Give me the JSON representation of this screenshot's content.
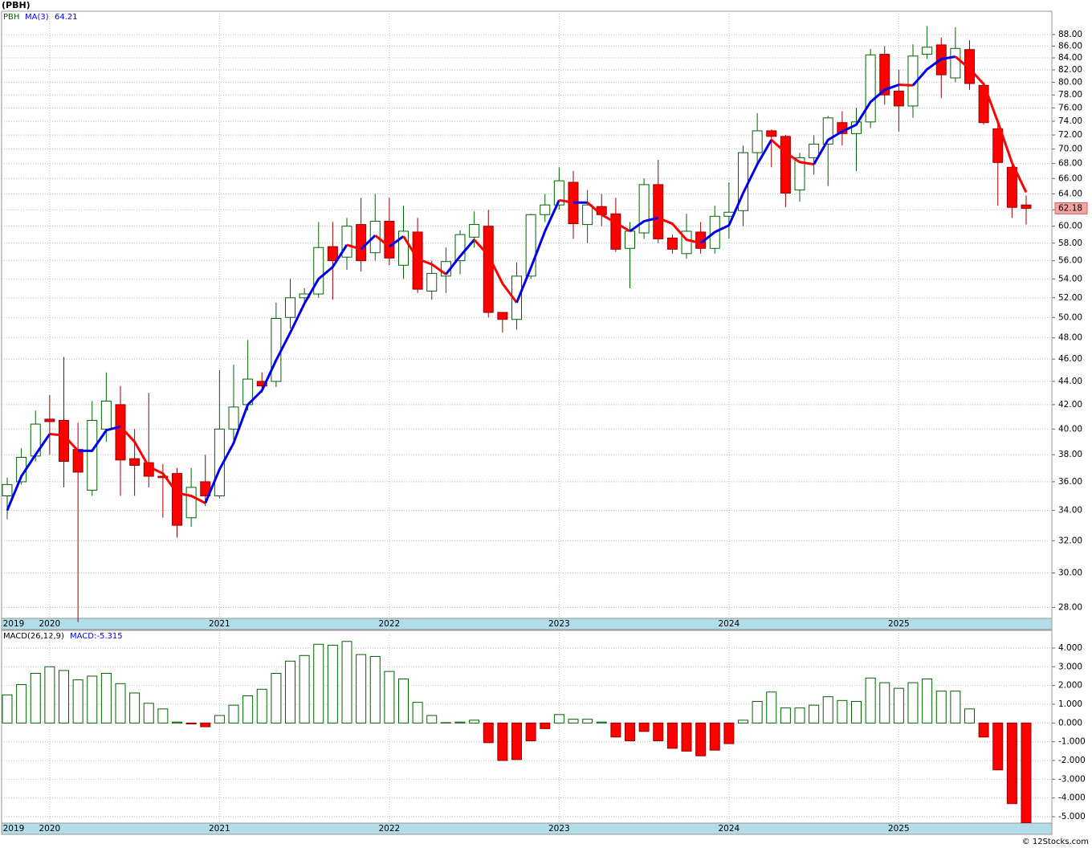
{
  "chart_data": [
    {
      "type": "candlestick",
      "title": "(PBH)",
      "name": "PBH",
      "categories": [
        "2019",
        null,
        null,
        "2020",
        null,
        null,
        null,
        null,
        null,
        null,
        null,
        null,
        null,
        null,
        null,
        "2021",
        null,
        null,
        null,
        null,
        null,
        null,
        null,
        null,
        null,
        null,
        null,
        "2022",
        null,
        null,
        null,
        null,
        null,
        null,
        null,
        null,
        null,
        null,
        null,
        "2023",
        null,
        null,
        null,
        null,
        null,
        null,
        null,
        null,
        null,
        null,
        null,
        "2024",
        null,
        null,
        null,
        null,
        null,
        null,
        null,
        null,
        null,
        null,
        null,
        "2025",
        null,
        null,
        null,
        null,
        null,
        null,
        null,
        null,
        null
      ],
      "open": [
        35.0,
        36.0,
        37.9,
        40.8,
        40.7,
        38.4,
        35.4,
        40.0,
        42.0,
        37.7,
        37.4,
        36.4,
        36.6,
        33.5,
        36.0,
        35.0,
        40.0,
        42.0,
        44.0,
        44.0,
        50.0,
        52.0,
        52.4,
        57.6,
        56.4,
        60.2,
        56.9,
        60.6,
        55.5,
        59.3,
        52.7,
        54.3,
        56.0,
        58.7,
        60.0,
        50.5,
        49.8,
        54.3,
        61.4,
        62.6,
        65.5,
        60.2,
        62.4,
        61.5,
        57.4,
        59.2,
        65.2,
        58.6,
        56.8,
        59.3,
        57.4,
        61.2,
        61.9,
        69.5,
        72.6,
        71.8,
        64.5,
        68.8,
        70.7,
        73.8,
        72.2,
        73.9,
        84.6,
        78.6,
        76.3,
        84.6,
        86.2,
        80.7,
        85.4,
        79.5,
        72.9,
        67.5,
        62.6
      ],
      "high": [
        36.3,
        38.5,
        41.5,
        42.8,
        46.2,
        40.5,
        42.3,
        44.8,
        43.6,
        40.0,
        43.0,
        37.3,
        37.0,
        37.0,
        38.0,
        45.0,
        45.5,
        47.8,
        44.8,
        51.5,
        54.0,
        53.0,
        60.5,
        60.5,
        61.0,
        63.5,
        64.0,
        63.5,
        62.5,
        61.0,
        56.0,
        57.5,
        59.5,
        61.8,
        62.0,
        50.5,
        55.8,
        61.5,
        64.0,
        67.5,
        67.0,
        64.5,
        64.0,
        63.5,
        60.5,
        66.0,
        68.5,
        59.0,
        61.5,
        60.5,
        62.5,
        65.5,
        70.5,
        75.2,
        72.8,
        72.0,
        69.5,
        72.0,
        74.8,
        75.5,
        76.0,
        85.5,
        86.0,
        82.0,
        86.3,
        89.5,
        87.5,
        89.3,
        87.0,
        80.0,
        73.5,
        67.8,
        63.8
      ],
      "low": [
        33.4,
        35.8,
        37.5,
        38.0,
        35.6,
        27.2,
        35.0,
        39.0,
        35.0,
        35.0,
        35.6,
        33.5,
        32.2,
        32.9,
        34.3,
        34.8,
        39.0,
        41.5,
        43.0,
        43.5,
        48.9,
        51.5,
        52.0,
        51.8,
        55.0,
        54.8,
        56.0,
        55.5,
        54.0,
        52.5,
        51.8,
        52.5,
        54.5,
        57.5,
        50.0,
        48.5,
        48.8,
        54.0,
        60.5,
        62.0,
        58.5,
        58.0,
        60.0,
        57.0,
        53.0,
        58.5,
        58.0,
        56.8,
        56.2,
        56.8,
        56.8,
        58.5,
        60.0,
        68.0,
        67.5,
        62.3,
        63.0,
        66.5,
        65.0,
        70.5,
        67.0,
        73.0,
        76.5,
        72.5,
        74.5,
        83.8,
        77.5,
        80.0,
        78.8,
        73.5,
        62.5,
        61.0,
        60.2
      ],
      "close": [
        35.8,
        37.8,
        40.4,
        40.6,
        37.5,
        36.7,
        40.7,
        42.3,
        37.6,
        37.2,
        36.4,
        36.3,
        33.0,
        35.6,
        35.0,
        40.0,
        41.8,
        44.2,
        43.6,
        49.9,
        52.0,
        52.4,
        57.5,
        56.0,
        60.0,
        56.0,
        60.6,
        56.3,
        59.4,
        52.9,
        54.6,
        55.9,
        59.0,
        60.2,
        50.5,
        49.8,
        54.3,
        61.4,
        62.6,
        65.7,
        60.3,
        62.6,
        61.4,
        57.3,
        59.4,
        65.2,
        58.5,
        57.3,
        59.4,
        57.4,
        61.2,
        61.7,
        69.5,
        72.6,
        71.8,
        64.1,
        68.8,
        70.7,
        74.5,
        72.2,
        73.9,
        84.5,
        78.0,
        76.3,
        84.3,
        85.8,
        81.2,
        85.6,
        79.8,
        73.8,
        68.15,
        62.3,
        62.18
      ],
      "up_color": "#ffffff",
      "up_edge_color": "#006400",
      "down_color": "#ff0000",
      "down_edge_color": "#990000",
      "ma": {
        "name": "MA(3)",
        "up_color": "#0000ee",
        "down_color": "#ff0000",
        "values": [
          34.0,
          36.4,
          38.0,
          39.6,
          39.5,
          38.3,
          38.3,
          39.9,
          40.2,
          39.0,
          37.1,
          36.6,
          35.2,
          35.0,
          34.5,
          36.9,
          38.9,
          42.0,
          43.2,
          45.9,
          48.5,
          51.4,
          54.0,
          55.3,
          57.8,
          57.3,
          58.9,
          57.6,
          58.8,
          56.2,
          55.6,
          54.5,
          56.5,
          58.4,
          56.6,
          53.5,
          51.5,
          55.2,
          59.4,
          63.2,
          62.9,
          62.9,
          61.4,
          60.4,
          59.4,
          60.6,
          61.0,
          60.3,
          58.4,
          58.0,
          59.3,
          60.1,
          64.1,
          67.9,
          71.3,
          69.5,
          68.2,
          67.9,
          71.3,
          72.5,
          73.5,
          76.9,
          78.8,
          79.6,
          79.5,
          82.1,
          83.8,
          84.2,
          82.2,
          79.7,
          73.9,
          68.1,
          64.21
        ]
      },
      "log_scale": true,
      "grid": true,
      "ylim": [
        27.4,
        92.2
      ],
      "yticks": [
        {
          "value": 28,
          "label": "28.00"
        },
        {
          "value": 30,
          "label": "30.00"
        },
        {
          "value": 32,
          "label": "32.00"
        },
        {
          "value": 34,
          "label": "34.00"
        },
        {
          "value": 36,
          "label": "36.00"
        },
        {
          "value": 38,
          "label": "38.00"
        },
        {
          "value": 40,
          "label": "40.00"
        },
        {
          "value": 42,
          "label": "42.00"
        },
        {
          "value": 44,
          "label": "44.00"
        },
        {
          "value": 46,
          "label": "46.00"
        },
        {
          "value": 48,
          "label": "48.00"
        },
        {
          "value": 50,
          "label": "50.00"
        },
        {
          "value": 52,
          "label": "52.00"
        },
        {
          "value": 54,
          "label": "54.00"
        },
        {
          "value": 56,
          "label": "56.00"
        },
        {
          "value": 58,
          "label": "58.00"
        },
        {
          "value": 60,
          "label": "60.00"
        },
        {
          "value": 62,
          "label": "62.00"
        },
        {
          "value": 64,
          "label": "64.00"
        },
        {
          "value": 66,
          "label": "66.00"
        },
        {
          "value": 68,
          "label": "68.00"
        },
        {
          "value": 70,
          "label": "70.00"
        },
        {
          "value": 72,
          "label": "72.00"
        },
        {
          "value": 74,
          "label": "74.00"
        },
        {
          "value": 76,
          "label": "76.00"
        },
        {
          "value": 78,
          "label": "78.00"
        },
        {
          "value": 80,
          "label": "80.00"
        },
        {
          "value": 82,
          "label": "82.00"
        },
        {
          "value": 84,
          "label": "84.00"
        },
        {
          "value": 86,
          "label": "86.00"
        },
        {
          "value": 88,
          "label": "88.00"
        }
      ]
    },
    {
      "type": "bar",
      "name": "MACD(26,12,9)",
      "value_label": "MACD:-5.315",
      "categories": [
        "2019",
        null,
        null,
        "2020",
        null,
        null,
        null,
        null,
        null,
        null,
        null,
        null,
        null,
        null,
        null,
        "2021",
        null,
        null,
        null,
        null,
        null,
        null,
        null,
        null,
        null,
        null,
        null,
        "2022",
        null,
        null,
        null,
        null,
        null,
        null,
        null,
        null,
        null,
        null,
        null,
        "2023",
        null,
        null,
        null,
        null,
        null,
        null,
        null,
        null,
        null,
        null,
        null,
        "2024",
        null,
        null,
        null,
        null,
        null,
        null,
        null,
        null,
        null,
        null,
        null,
        "2025",
        null,
        null,
        null,
        null,
        null,
        null,
        null,
        null,
        null
      ],
      "values": [
        1.5,
        2.05,
        2.65,
        3.0,
        2.8,
        2.3,
        2.5,
        2.65,
        2.1,
        1.6,
        1.05,
        0.75,
        0.05,
        -0.05,
        -0.2,
        0.4,
        0.95,
        1.45,
        1.8,
        2.65,
        3.3,
        3.6,
        4.2,
        4.15,
        4.35,
        3.65,
        3.55,
        2.75,
        2.35,
        1.1,
        0.4,
        0.02,
        0.05,
        0.15,
        -1.05,
        -2.0,
        -1.95,
        -0.95,
        -0.3,
        0.45,
        0.2,
        0.2,
        0.05,
        -0.75,
        -0.95,
        -0.45,
        -0.95,
        -1.35,
        -1.5,
        -1.75,
        -1.45,
        -1.1,
        0.15,
        1.15,
        1.65,
        0.8,
        0.8,
        0.95,
        1.4,
        1.2,
        1.15,
        2.4,
        2.15,
        1.85,
        2.15,
        2.35,
        1.7,
        1.7,
        0.75,
        -0.75,
        -2.5,
        -4.3,
        -5.315
      ],
      "up_color": "#ffffff",
      "up_edge_color": "#006400",
      "down_color": "#ff0000",
      "down_edge_color": "#990000",
      "grid": true,
      "ylim": [
        -5.34,
        4.94
      ],
      "yticks": [
        {
          "value": 4,
          "label": "4.000"
        },
        {
          "value": 3,
          "label": "3.000"
        },
        {
          "value": 2,
          "label": "2.000"
        },
        {
          "value": 1,
          "label": "1.000"
        },
        {
          "value": 0,
          "label": "0.000"
        },
        {
          "value": -1,
          "label": "-1.000"
        },
        {
          "value": -2,
          "label": "-2.000"
        },
        {
          "value": -3,
          "label": "-3.000"
        },
        {
          "value": -4,
          "label": "-4.000"
        },
        {
          "value": -5,
          "label": "-5.000"
        }
      ]
    }
  ],
  "credit": "© 12Stocks.com"
}
